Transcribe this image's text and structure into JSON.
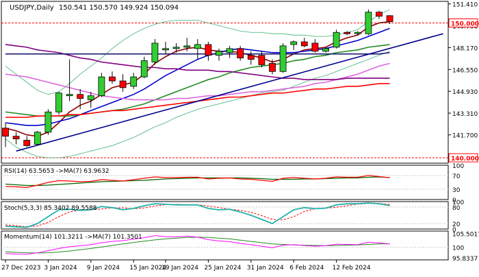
{
  "chart_data": {
    "type": "candlestick",
    "symbol_label": "USDJPY,Daily",
    "ohlc_label": "150.541 150.570 149.924 150.094",
    "x_tick_labels": [
      "27 Dec 2023",
      "3 Jan 2024",
      "9 Jan 2024",
      "15 Jan 2024",
      "19 Jan 2024",
      "25 Jan 2024",
      "31 Jan 2024",
      "6 Feb 2024",
      "12 Feb 2024"
    ],
    "y_tick_labels": [
      "151.410",
      "149.790",
      "148.170",
      "146.550",
      "144.930",
      "143.310",
      "141.700"
    ],
    "y_range": [
      139.6,
      151.6
    ],
    "price_levels": [
      {
        "value": 150.0,
        "label": "150.000",
        "color": "#ff0000"
      },
      {
        "value": 140.0,
        "label": "140.000",
        "color": "#ff0000"
      }
    ],
    "candles": [
      {
        "o": 142.2,
        "h": 142.6,
        "l": 140.8,
        "c": 141.6
      },
      {
        "o": 141.6,
        "h": 141.9,
        "l": 141.0,
        "c": 141.4
      },
      {
        "o": 141.3,
        "h": 141.6,
        "l": 140.8,
        "c": 140.9
      },
      {
        "o": 141.0,
        "h": 142.0,
        "l": 140.9,
        "c": 141.9
      },
      {
        "o": 141.9,
        "h": 143.6,
        "l": 141.7,
        "c": 143.4
      },
      {
        "o": 143.4,
        "h": 144.9,
        "l": 143.2,
        "c": 144.8
      },
      {
        "o": 144.6,
        "h": 147.3,
        "l": 144.2,
        "c": 144.7
      },
      {
        "o": 144.7,
        "h": 145.1,
        "l": 143.6,
        "c": 144.4
      },
      {
        "o": 144.3,
        "h": 144.9,
        "l": 143.7,
        "c": 144.6
      },
      {
        "o": 144.6,
        "h": 146.3,
        "l": 144.5,
        "c": 146.0
      },
      {
        "o": 146.0,
        "h": 146.4,
        "l": 145.5,
        "c": 145.7
      },
      {
        "o": 145.7,
        "h": 146.2,
        "l": 144.9,
        "c": 145.2
      },
      {
        "o": 145.3,
        "h": 146.3,
        "l": 145.1,
        "c": 146.0
      },
      {
        "o": 146.0,
        "h": 147.5,
        "l": 145.9,
        "c": 147.2
      },
      {
        "o": 147.1,
        "h": 148.8,
        "l": 146.9,
        "c": 148.5
      },
      {
        "o": 148.0,
        "h": 148.6,
        "l": 147.7,
        "c": 148.1
      },
      {
        "o": 148.1,
        "h": 148.5,
        "l": 147.8,
        "c": 148.2
      },
      {
        "o": 148.2,
        "h": 148.9,
        "l": 147.9,
        "c": 148.3
      },
      {
        "o": 148.1,
        "h": 148.8,
        "l": 147.3,
        "c": 148.4
      },
      {
        "o": 148.4,
        "h": 148.6,
        "l": 147.2,
        "c": 147.6
      },
      {
        "o": 147.6,
        "h": 148.1,
        "l": 147.2,
        "c": 147.9
      },
      {
        "o": 147.8,
        "h": 148.3,
        "l": 147.4,
        "c": 148.1
      },
      {
        "o": 148.1,
        "h": 148.3,
        "l": 147.2,
        "c": 147.4
      },
      {
        "o": 147.6,
        "h": 147.9,
        "l": 146.9,
        "c": 147.3
      },
      {
        "o": 147.6,
        "h": 147.9,
        "l": 146.7,
        "c": 146.9
      },
      {
        "o": 147.0,
        "h": 147.3,
        "l": 146.2,
        "c": 146.4
      },
      {
        "o": 146.4,
        "h": 148.5,
        "l": 146.3,
        "c": 148.3
      },
      {
        "o": 148.4,
        "h": 148.7,
        "l": 148.0,
        "c": 148.6
      },
      {
        "o": 148.6,
        "h": 148.9,
        "l": 148.2,
        "c": 148.3
      },
      {
        "o": 148.5,
        "h": 148.8,
        "l": 147.8,
        "c": 147.9
      },
      {
        "o": 147.9,
        "h": 148.2,
        "l": 147.8,
        "c": 148.1
      },
      {
        "o": 148.2,
        "h": 149.5,
        "l": 148.1,
        "c": 149.3
      },
      {
        "o": 149.3,
        "h": 149.4,
        "l": 149.1,
        "c": 149.2
      },
      {
        "o": 149.2,
        "h": 149.4,
        "l": 149.1,
        "c": 149.3
      },
      {
        "o": 149.2,
        "h": 151.0,
        "l": 149.1,
        "c": 150.8
      },
      {
        "o": 150.8,
        "h": 150.9,
        "l": 150.3,
        "c": 150.5
      },
      {
        "o": 150.541,
        "h": 150.57,
        "l": 149.924,
        "c": 150.094
      }
    ],
    "moving_averages": [
      {
        "color": "#8b0000",
        "values": [
          142.2,
          142.0,
          141.7,
          141.6,
          141.9,
          142.6,
          143.4,
          143.9,
          144.2,
          144.7,
          145.2,
          145.4,
          145.6,
          146.2,
          147.0,
          147.5,
          147.9,
          148.1,
          148.2,
          148.0,
          147.9,
          147.9,
          147.8,
          147.6,
          147.4,
          147.1,
          147.3,
          147.7,
          148.0,
          148.1,
          148.2,
          148.6,
          148.9,
          149.1,
          149.7,
          150.0,
          150.1
        ]
      },
      {
        "color": "#0000cd",
        "values": [
          142.6,
          142.5,
          142.4,
          142.4,
          142.5,
          142.7,
          142.9,
          143.2,
          143.5,
          143.8,
          144.1,
          144.4,
          144.7,
          145.1,
          145.6,
          146.1,
          146.5,
          146.9,
          147.3,
          147.6,
          147.8,
          148.0,
          148.1,
          148.0,
          147.9,
          147.8,
          147.8,
          147.8,
          147.9,
          148.0,
          148.1,
          148.3,
          148.5,
          148.7,
          149.0,
          149.3,
          149.6
        ]
      },
      {
        "color": "#228b22",
        "values": [
          143.4,
          143.3,
          143.2,
          143.1,
          143.1,
          143.1,
          143.1,
          143.2,
          143.3,
          143.4,
          143.5,
          143.6,
          143.8,
          144.0,
          144.3,
          144.6,
          144.9,
          145.2,
          145.5,
          145.8,
          146.0,
          146.3,
          146.5,
          146.7,
          146.8,
          146.9,
          147.0,
          147.2,
          147.3,
          147.5,
          147.6,
          147.8,
          147.9,
          148.0,
          148.2,
          148.3,
          148.4
        ]
      },
      {
        "color": "#ff0000",
        "values": [
          143.0,
          143.0,
          143.0,
          143.1,
          143.1,
          143.1,
          143.2,
          143.2,
          143.3,
          143.4,
          143.5,
          143.5,
          143.6,
          143.7,
          143.8,
          143.9,
          144.0,
          144.1,
          144.2,
          144.3,
          144.4,
          144.5,
          144.5,
          144.6,
          144.7,
          144.8,
          144.8,
          144.9,
          145.0,
          145.1,
          145.1,
          145.2,
          145.3,
          145.3,
          145.4,
          145.5,
          145.5
        ]
      },
      {
        "color": "#dd66dd",
        "values": [
          146.2,
          146.1,
          146.0,
          145.8,
          145.6,
          145.4,
          145.2,
          145.0,
          144.8,
          144.6,
          144.5,
          144.4,
          144.3,
          144.3,
          144.3,
          144.3,
          144.4,
          144.4,
          144.5,
          144.6,
          144.6,
          144.7,
          144.8,
          144.9,
          144.9,
          145.0,
          145.1,
          145.2,
          145.3,
          145.5,
          145.6,
          145.8,
          146.0,
          146.2,
          146.5,
          146.8,
          147.0
        ]
      },
      {
        "color": "#800080",
        "values": [
          148.4,
          148.3,
          148.2,
          148.0,
          147.9,
          147.8,
          147.6,
          147.4,
          147.3,
          147.1,
          147.0,
          146.9,
          146.8,
          146.7,
          146.7,
          146.6,
          146.6,
          146.5,
          146.5,
          146.5,
          146.4,
          146.4,
          146.3,
          146.2,
          146.1,
          146.0,
          145.9,
          145.9,
          145.8,
          145.8,
          145.8,
          145.8,
          145.9,
          145.9,
          145.9,
          145.9,
          145.9
        ]
      },
      {
        "color": "#191970",
        "values": [
          147.7,
          147.7,
          147.7,
          147.7,
          147.7,
          147.7,
          147.7,
          147.7,
          147.7,
          147.7,
          147.7,
          147.7,
          147.7,
          147.7,
          147.7,
          147.7,
          147.7,
          147.7,
          147.7,
          147.7,
          147.7,
          147.7,
          147.7,
          147.7,
          147.7,
          147.7,
          147.7,
          147.7,
          147.7,
          147.7,
          147.7,
          147.7,
          147.7,
          147.7,
          147.7,
          147.7,
          147.8
        ]
      }
    ],
    "bollinger": {
      "color": "#3cb371",
      "upper": [
        146.8,
        146.2,
        145.6,
        145.0,
        144.7,
        144.9,
        145.5,
        146.2,
        146.8,
        147.4,
        148.1,
        148.7,
        149.2,
        149.6,
        149.9,
        150.1,
        150.2,
        150.2,
        150.2,
        150.0,
        149.8,
        149.6,
        149.4,
        149.3,
        149.3,
        149.2,
        149.2,
        149.1,
        149.1,
        149.0,
        149.0,
        149.1,
        149.3,
        149.5,
        150.1,
        150.6,
        151.0
      ],
      "lower": [
        141.4,
        140.8,
        140.4,
        140.1,
        140.0,
        140.0,
        140.1,
        140.3,
        140.5,
        140.7,
        140.9,
        141.2,
        141.5,
        141.9,
        142.3,
        142.6,
        143.0,
        143.3,
        143.6,
        143.8,
        144.0,
        144.2,
        144.4,
        144.6,
        144.8,
        144.9,
        145.0,
        145.3,
        145.6,
        145.9,
        146.1,
        146.4,
        146.7,
        147.0,
        147.3,
        147.6,
        147.9
      ]
    },
    "trendline": {
      "color": "#00008b",
      "from": {
        "index": 1,
        "value": 140.5
      },
      "to": {
        "index": 41,
        "value": 149.2
      }
    },
    "rsi": {
      "label": "RSI(14) 63.5653 ->MA(7) 63.9632",
      "levels": [
        70,
        30
      ],
      "tick_labels": [
        "100",
        "70",
        "30",
        "0"
      ],
      "line_color": "#ff0000",
      "ma_color": "#006400",
      "values": [
        38,
        37,
        35,
        42,
        50,
        55,
        54,
        52,
        53,
        58,
        56,
        54,
        58,
        62,
        66,
        64,
        64,
        65,
        65,
        60,
        62,
        63,
        60,
        59,
        56,
        53,
        62,
        64,
        62,
        60,
        62,
        66,
        65,
        65,
        70,
        67,
        63.5653
      ],
      "ma": [
        45,
        43,
        41,
        41,
        42,
        44,
        46,
        48,
        50,
        52,
        53,
        54,
        55,
        56,
        58,
        60,
        61,
        62,
        63,
        63,
        63,
        63,
        63,
        62,
        61,
        59,
        59,
        59,
        60,
        60,
        61,
        62,
        63,
        63,
        65,
        66,
        63.9632
      ]
    },
    "stoch": {
      "label": "Stoch(5,3,3) 85.3402 89.5588",
      "tick_labels": [
        "100",
        "80",
        "20",
        "0"
      ],
      "k_color": "#20b2aa",
      "d_color": "#ff0000",
      "k": [
        10,
        8,
        6,
        20,
        45,
        70,
        72,
        68,
        70,
        82,
        78,
        70,
        75,
        85,
        92,
        90,
        88,
        88,
        88,
        75,
        70,
        72,
        62,
        50,
        35,
        20,
        45,
        70,
        78,
        74,
        76,
        88,
        92,
        92,
        95,
        92,
        85.3402
      ],
      "d": [
        15,
        12,
        8,
        11,
        24,
        45,
        62,
        70,
        70,
        73,
        77,
        77,
        74,
        77,
        84,
        89,
        90,
        89,
        88,
        84,
        78,
        72,
        68,
        61,
        49,
        35,
        33,
        45,
        64,
        74,
        76,
        79,
        85,
        91,
        93,
        93,
        89.5588
      ]
    },
    "momentum": {
      "label": "Momentum(14) 101.3211 ->MA(7) 101.3501",
      "tick_labels": [
        "105.5017",
        "100",
        "95.8337"
      ],
      "level": 100,
      "line_color": "#ff00ff",
      "ma_color": "#228b22",
      "values": [
        97.5,
        97.3,
        97.2,
        97.8,
        98.6,
        99.5,
        100.2,
        100.6,
        101.0,
        101.8,
        102.3,
        102.6,
        103.2,
        103.8,
        104.6,
        104.2,
        104.1,
        104.4,
        104.0,
        103.0,
        102.5,
        102.2,
        101.5,
        101.0,
        100.4,
        99.8,
        100.8,
        101.0,
        100.7,
        100.4,
        100.6,
        101.2,
        101.1,
        101.0,
        102.0,
        101.7,
        101.3211
      ],
      "ma": [
        98.2,
        98.0,
        97.8,
        97.7,
        97.8,
        98.1,
        98.5,
        99.0,
        99.5,
        100.1,
        100.7,
        101.3,
        101.9,
        102.4,
        102.9,
        103.3,
        103.6,
        103.9,
        104.0,
        103.9,
        103.6,
        103.3,
        102.8,
        102.3,
        101.8,
        101.3,
        101.1,
        100.9,
        100.8,
        100.7,
        100.6,
        100.7,
        100.8,
        100.9,
        101.1,
        101.3,
        101.3501
      ]
    },
    "colors": {
      "bull_candle": "#32cd32",
      "bear_candle": "#ff0000",
      "wick": "#000000",
      "grid": "#c8c8c8",
      "axis_text": "#000000",
      "price_badge_bg": "#ffffff",
      "price_badge_text": "#ff0000"
    }
  }
}
